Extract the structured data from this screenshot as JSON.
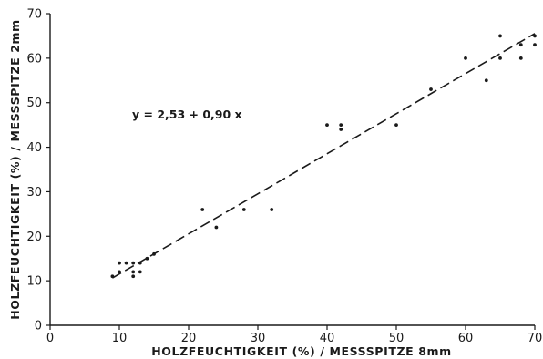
{
  "chart_data": {
    "type": "scatter",
    "xlabel": "HOLZFEUCHTIGKEIT (%) / MESSSPITZE 8mm",
    "ylabel": "HOLZFEUCHTIGKEIT (%) / MESSSPITZE 2mm",
    "xlim": [
      0,
      70
    ],
    "ylim": [
      0,
      70
    ],
    "x_ticks": [
      0,
      10,
      20,
      30,
      40,
      50,
      60,
      70
    ],
    "y_ticks": [
      0,
      10,
      20,
      30,
      40,
      50,
      60,
      70
    ],
    "annotation": "y = 2,53 + 0,90 x",
    "grid": false,
    "fit_line": {
      "intercept": 2.53,
      "slope": 0.9,
      "x_range": [
        9,
        70
      ]
    },
    "series": [
      {
        "points": [
          [
            9,
            11
          ],
          [
            10,
            12
          ],
          [
            10,
            14
          ],
          [
            11,
            14
          ],
          [
            12,
            11
          ],
          [
            12,
            12
          ],
          [
            12,
            14
          ],
          [
            13,
            12
          ],
          [
            13,
            14
          ],
          [
            14,
            15
          ],
          [
            15,
            16
          ],
          [
            22,
            26
          ],
          [
            24,
            22
          ],
          [
            28,
            26
          ],
          [
            32,
            26
          ],
          [
            40,
            45
          ],
          [
            42,
            44
          ],
          [
            42,
            45
          ],
          [
            50,
            45
          ],
          [
            55,
            53
          ],
          [
            60,
            60
          ],
          [
            63,
            55
          ],
          [
            65,
            60
          ],
          [
            65,
            65
          ],
          [
            68,
            60
          ],
          [
            68,
            63
          ],
          [
            70,
            63
          ],
          [
            70,
            65
          ]
        ]
      }
    ]
  }
}
